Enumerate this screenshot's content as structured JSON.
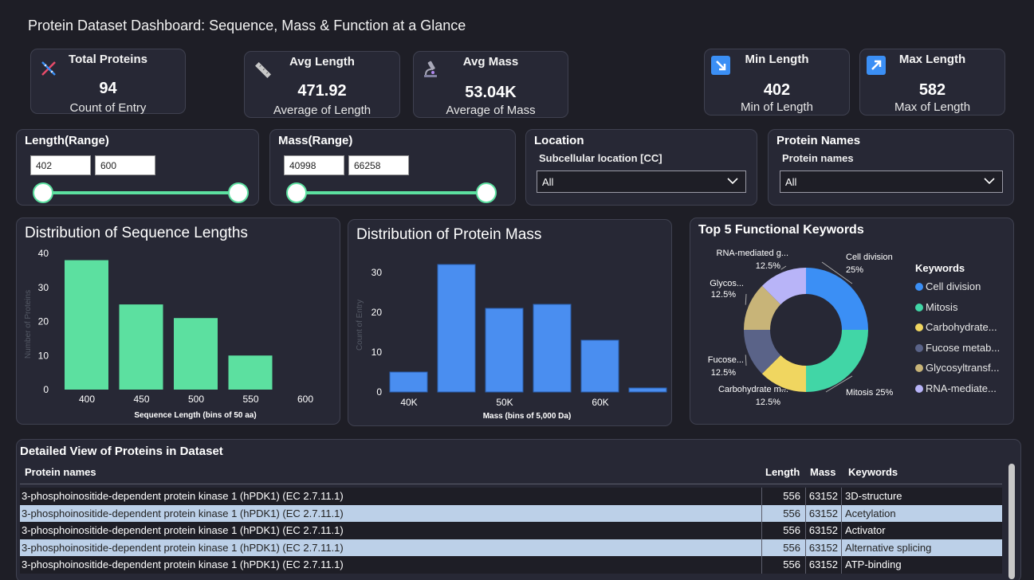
{
  "title": "Protein Dataset Dashboard: Sequence, Mass & Function at a Glance",
  "kpis": {
    "total": {
      "title": "Total Proteins",
      "value": "94",
      "sub": "Count of Entry",
      "icon": "dna-icon"
    },
    "avg_length": {
      "title": "Avg Length",
      "value": "471.92",
      "sub": "Average of Length",
      "icon": "ruler-icon"
    },
    "avg_mass": {
      "title": "Avg Mass",
      "value": "53.04K",
      "sub": "Average of Mass",
      "icon": "microscope-icon"
    },
    "min_length": {
      "title": "Min Length",
      "value": "402",
      "sub": "Min of Length",
      "icon": "arrow-down-right-icon"
    },
    "max_length": {
      "title": "Max Length",
      "value": "582",
      "sub": "Max of Length",
      "icon": "arrow-up-right-icon"
    }
  },
  "slicers": {
    "length": {
      "title": "Length(Range)",
      "min": "402",
      "max": "600"
    },
    "mass": {
      "title": "Mass(Range)",
      "min": "40998",
      "max": "66258"
    },
    "location": {
      "title": "Location",
      "field": "Subcellular location [CC]",
      "value": "All"
    },
    "names": {
      "title": "Protein Names",
      "field": "Protein names",
      "value": "All"
    }
  },
  "colors": {
    "green": "#5ce0a0",
    "blue": "#4a8ef0"
  },
  "chart_data": [
    {
      "type": "bar",
      "title": "Distribution of Sequence Lengths",
      "xlabel": "Sequence Length (bins of 50 aa)",
      "ylabel": "Number of Proteins",
      "x_ticks": [
        "400",
        "450",
        "500",
        "550",
        "600"
      ],
      "y_ticks": [
        "0",
        "10",
        "20",
        "30",
        "40"
      ],
      "ylim": [
        0,
        40
      ],
      "bins": [
        400,
        450,
        500,
        550
      ],
      "values": [
        38,
        25,
        21,
        10
      ],
      "color": "#5ce0a0"
    },
    {
      "type": "bar",
      "title": "Distribution of Protein Mass",
      "xlabel": "Mass (bins of 5,000 Da)",
      "ylabel": "Count of Entry",
      "x_ticks": [
        "40K",
        "50K",
        "60K"
      ],
      "y_ticks": [
        "0",
        "10",
        "20",
        "30"
      ],
      "ylim": [
        0,
        35
      ],
      "bins": [
        40000,
        45000,
        50000,
        55000,
        60000,
        65000
      ],
      "values": [
        5,
        32,
        21,
        22,
        13,
        1
      ],
      "color": "#4a8ef0"
    },
    {
      "type": "pie",
      "title": "Top 5 Functional Keywords",
      "legend_title": "Keywords",
      "slices": [
        {
          "label": "Cell division",
          "short": "Cell division",
          "value": 25,
          "pct": "25%",
          "color": "#3b8ff5"
        },
        {
          "label": "Mitosis",
          "short": "Mitosis",
          "value": 25,
          "pct": "25%",
          "color": "#41d6a6"
        },
        {
          "label": "Carbohydrate m...",
          "short": "Carbohydrate...",
          "value": 12.5,
          "pct": "12.5%",
          "color": "#f0d660"
        },
        {
          "label": "Fucose...",
          "short": "Fucose metab...",
          "value": 12.5,
          "pct": "12.5%",
          "color": "#5a6388"
        },
        {
          "label": "Glycos...",
          "short": "Glycosyltransf...",
          "value": 12.5,
          "pct": "12.5%",
          "color": "#c8b478"
        },
        {
          "label": "RNA-mediated g...",
          "short": "RNA-mediate...",
          "value": 12.5,
          "pct": "12.5%",
          "color": "#b8b4f8"
        }
      ]
    }
  ],
  "table": {
    "title": "Detailed View of Proteins in Dataset",
    "columns": [
      "Protein names",
      "Length",
      "Mass",
      "Keywords"
    ],
    "rows": [
      {
        "name": "3-phosphoinositide-dependent protein kinase 1 (hPDK1) (EC 2.7.11.1)",
        "length": "556",
        "mass": "63152",
        "keyword": "3D-structure"
      },
      {
        "name": "3-phosphoinositide-dependent protein kinase 1 (hPDK1) (EC 2.7.11.1)",
        "length": "556",
        "mass": "63152",
        "keyword": "Acetylation"
      },
      {
        "name": "3-phosphoinositide-dependent protein kinase 1 (hPDK1) (EC 2.7.11.1)",
        "length": "556",
        "mass": "63152",
        "keyword": "Activator"
      },
      {
        "name": "3-phosphoinositide-dependent protein kinase 1 (hPDK1) (EC 2.7.11.1)",
        "length": "556",
        "mass": "63152",
        "keyword": "Alternative splicing"
      },
      {
        "name": "3-phosphoinositide-dependent protein kinase 1 (hPDK1) (EC 2.7.11.1)",
        "length": "556",
        "mass": "63152",
        "keyword": "ATP-binding"
      }
    ]
  }
}
